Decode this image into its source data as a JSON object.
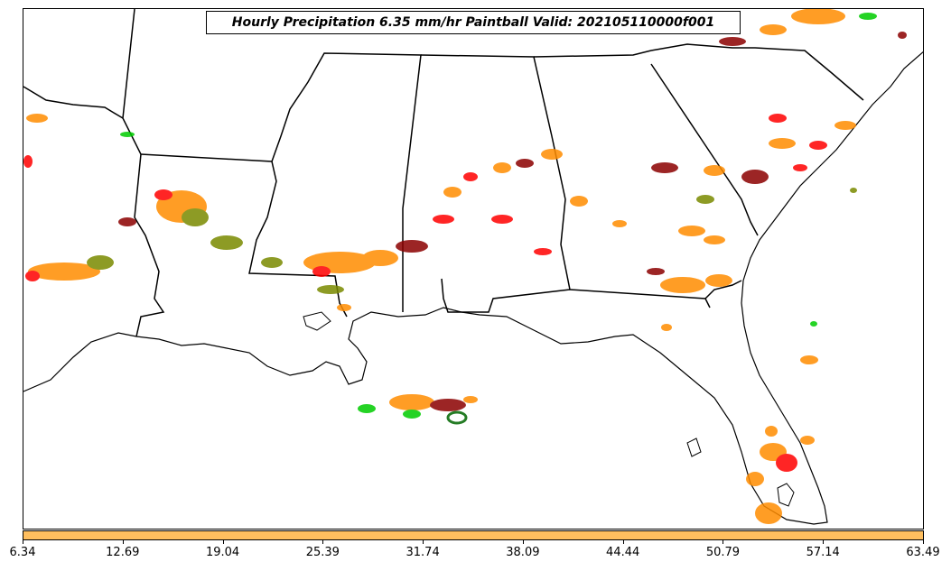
{
  "title": "Hourly Precipitation 6.35 mm/hr Paintball Valid: 202105110000f001",
  "colorbar": {
    "color": "#ffbf5f",
    "ticks": [
      "6.34",
      "12.69",
      "19.04",
      "25.39",
      "31.74",
      "38.09",
      "44.44",
      "50.79",
      "57.14",
      "63.49"
    ]
  },
  "map": {
    "region": "southeastern-united-states",
    "colors": {
      "orange": "#ff8c00",
      "red": "#ff0000",
      "green": "#00cc00",
      "darkred": "#8b0000",
      "olive": "#7a8a00",
      "land_line": "#000000"
    }
  }
}
